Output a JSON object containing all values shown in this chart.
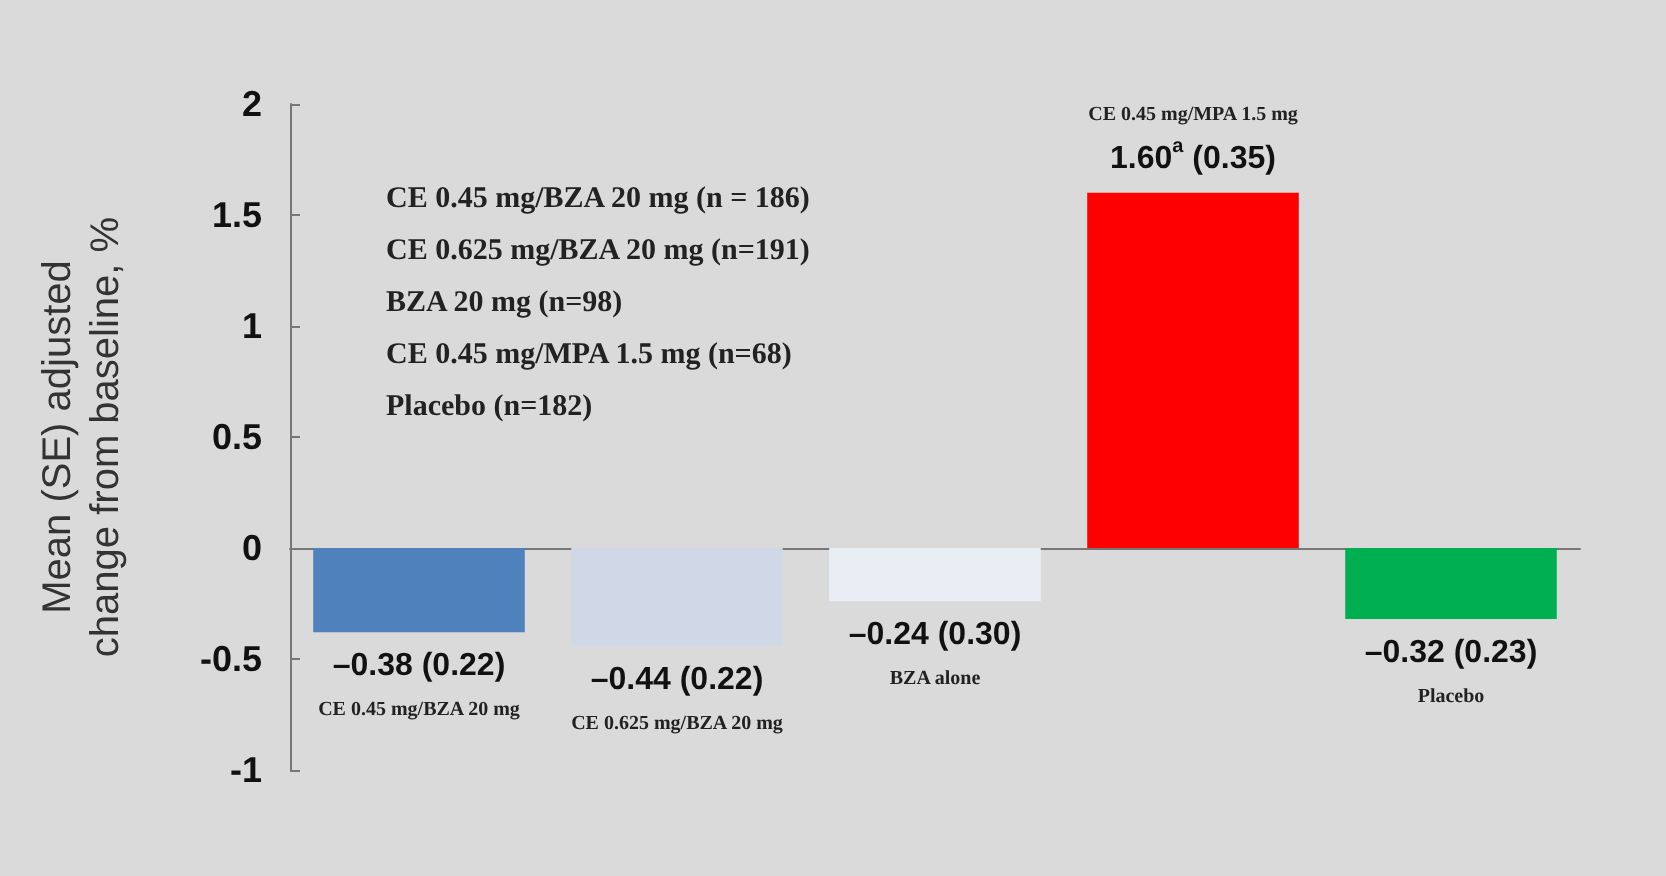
{
  "chart_data": {
    "type": "bar",
    "ylabel": "Mean (SE) adjusted change from baseline, %",
    "categories": [
      "CE 0.45 mg/BZA 20 mg",
      "CE 0.625 mg/BZA 20 mg",
      "BZA alone",
      "CE 0.45 mg/MPA 1.5 mg",
      "Placebo"
    ],
    "values": [
      -0.38,
      -0.44,
      -0.24,
      1.6,
      -0.32
    ],
    "colors": [
      "#4f81bd",
      "#d0d8e8",
      "#e9edf4",
      "#ff0000",
      "#00b050"
    ],
    "value_labels": [
      "–0.38 (0.22)",
      "–0.44 (0.22)",
      "–0.24 (0.30)",
      "1.60$^{a}$ (0.35)",
      "–0.32 (0.23)"
    ],
    "ylim": [
      -1,
      2
    ],
    "yticks": [
      -1,
      -0.5,
      0,
      0.5,
      1,
      1.5,
      2
    ],
    "annotations": [
      "CE 0.45 mg/BZA 20 mg (n = 186)",
      "CE 0.625 mg/BZA 20 mg (n=191)",
      "BZA 20 mg (n=98)",
      "CE 0.45 mg/MPA 1.5 mg (n=68)",
      "Placebo (n=182)"
    ]
  }
}
